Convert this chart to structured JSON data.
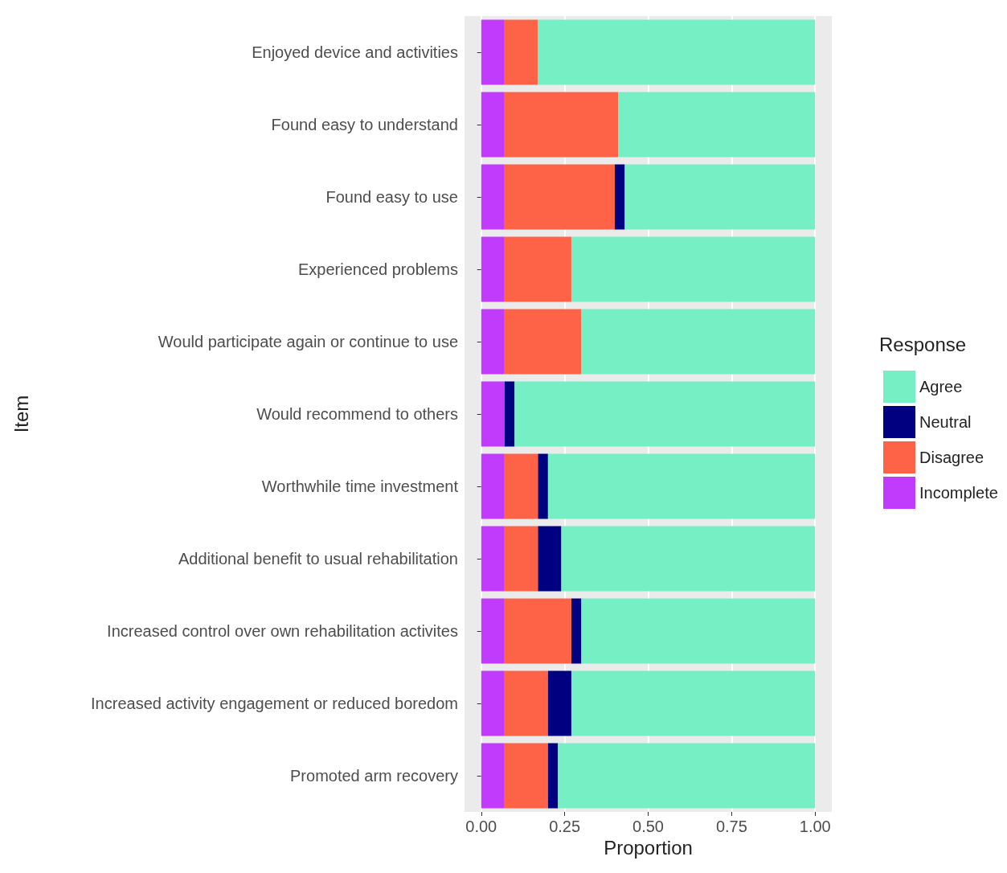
{
  "chart_data": {
    "type": "bar",
    "orientation": "horizontal",
    "stacked": true,
    "xlabel": "Proportion",
    "ylabel": "Item",
    "legend_title": "Response",
    "legend": "right",
    "grid": "x",
    "categories": [
      "Enjoyed device and activities",
      "Found easy to understand",
      "Found easy to use",
      "Experienced problems",
      "Would participate again or continue to use",
      "Would recommend to others",
      "Worthwhile time investment",
      "Additional benefit to usual rehabilitation",
      "Increased control over own rehabilitation activites",
      "Increased activity engagement or reduced boredom",
      "Promoted arm recovery"
    ],
    "xlim": [
      -0.05,
      1.05
    ],
    "xticks": [
      {
        "value": 0,
        "label": "0.00"
      },
      {
        "value": 0.25,
        "label": "0.25"
      },
      {
        "value": 0.5,
        "label": "0.50"
      },
      {
        "value": 0.75,
        "label": "0.75"
      },
      {
        "value": 1,
        "label": "1.00"
      }
    ],
    "series": [
      {
        "name": "Incomplete",
        "color": "#c13bfc",
        "values": [
          0.07,
          0.07,
          0.07,
          0.07,
          0.07,
          0.07,
          0.07,
          0.07,
          0.07,
          0.07,
          0.07
        ]
      },
      {
        "name": "Disagree",
        "color": "#fe6347",
        "values": [
          0.1,
          0.34,
          0.33,
          0.2,
          0.23,
          0,
          0.1,
          0.1,
          0.2,
          0.13,
          0.13
        ]
      },
      {
        "name": "Neutral",
        "color": "#000080",
        "values": [
          0,
          0,
          0.03,
          0,
          0,
          0.03,
          0.03,
          0.07,
          0.03,
          0.07,
          0.03
        ]
      },
      {
        "name": "Agree",
        "color": "#76efc5",
        "values": [
          0.83,
          0.59,
          0.57,
          0.73,
          0.7,
          0.9,
          0.8,
          0.76,
          0.7,
          0.73,
          0.77
        ]
      }
    ]
  }
}
